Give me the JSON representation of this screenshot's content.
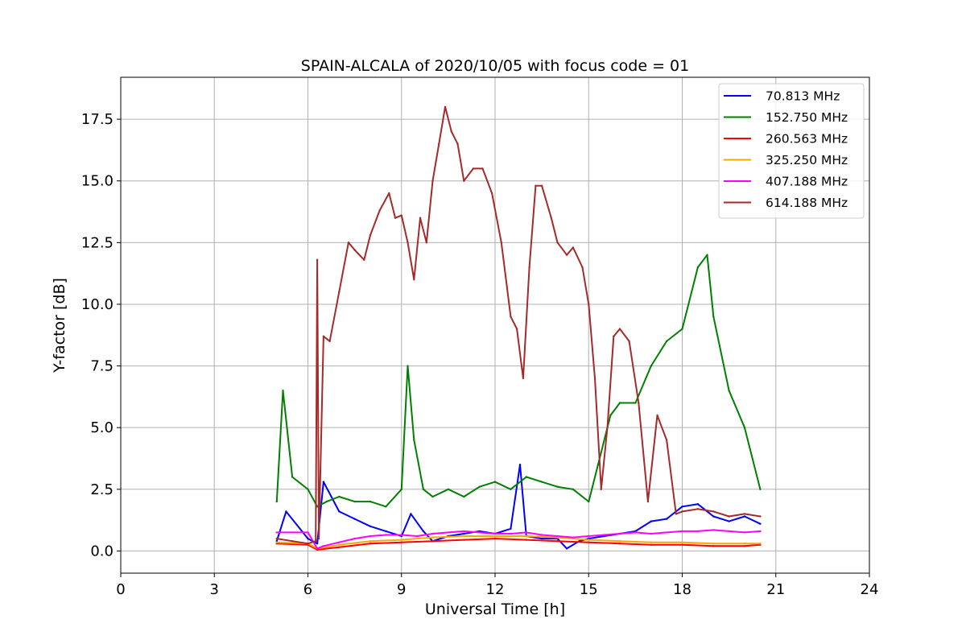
{
  "chart_data": {
    "type": "line",
    "title": "SPAIN-ALCALA of 2020/10/05 with focus code = 01",
    "xlabel": "Universal Time [h]",
    "ylabel": "Y-factor [dB]",
    "xlim": [
      0,
      24
    ],
    "ylim": [
      -0.9,
      19.2
    ],
    "xticks": [
      0,
      3,
      6,
      9,
      12,
      15,
      18,
      21,
      24
    ],
    "xtick_labels": [
      "0",
      "3",
      "6",
      "9",
      "12",
      "15",
      "18",
      "21",
      "24"
    ],
    "yticks": [
      0,
      2.5,
      5,
      7.5,
      10,
      12.5,
      15,
      17.5
    ],
    "ytick_labels": [
      "0.0",
      "2.5",
      "5.0",
      "7.5",
      "10.0",
      "12.5",
      "15.0",
      "17.5"
    ],
    "grid": true,
    "legend_position": "top-right",
    "series": [
      {
        "name": " 70.813 MHz",
        "color": "#0000ff",
        "x": [
          5.0,
          5.3,
          6.0,
          6.3,
          6.5,
          7.0,
          7.5,
          8.0,
          8.5,
          9.0,
          9.3,
          9.7,
          10.0,
          10.5,
          11.0,
          11.5,
          12.0,
          12.5,
          12.8,
          13.0,
          13.5,
          14.0,
          14.3,
          14.7,
          15.0,
          15.5,
          16.0,
          16.5,
          17.0,
          17.5,
          18.0,
          18.5,
          19.0,
          19.5,
          20.0,
          20.5
        ],
        "y": [
          0.4,
          1.6,
          0.5,
          0.3,
          2.8,
          1.6,
          1.3,
          1.0,
          0.8,
          0.6,
          1.5,
          0.8,
          0.4,
          0.6,
          0.7,
          0.8,
          0.7,
          0.9,
          3.5,
          0.6,
          0.5,
          0.5,
          0.1,
          0.4,
          0.5,
          0.6,
          0.7,
          0.8,
          1.2,
          1.3,
          1.8,
          1.9,
          1.4,
          1.2,
          1.4,
          1.1
        ]
      },
      {
        "name": "152.750 MHz",
        "color": "#008000",
        "x": [
          5.0,
          5.2,
          5.5,
          6.0,
          6.3,
          6.6,
          7.0,
          7.5,
          8.0,
          8.5,
          9.0,
          9.2,
          9.4,
          9.7,
          10.0,
          10.5,
          11.0,
          11.5,
          12.0,
          12.5,
          13.0,
          13.5,
          14.0,
          14.5,
          15.0,
          15.3,
          15.7,
          16.0,
          16.5,
          17.0,
          17.5,
          18.0,
          18.5,
          18.8,
          19.0,
          19.5,
          20.0,
          20.5
        ],
        "y": [
          2.0,
          6.5,
          3.0,
          2.5,
          1.8,
          2.0,
          2.2,
          2.0,
          2.0,
          1.8,
          2.5,
          7.5,
          4.5,
          2.5,
          2.2,
          2.5,
          2.2,
          2.6,
          2.8,
          2.5,
          3.0,
          2.8,
          2.6,
          2.5,
          2.0,
          3.5,
          5.5,
          6.0,
          6.0,
          7.5,
          8.5,
          9.0,
          11.5,
          12.0,
          9.5,
          6.5,
          5.0,
          2.5
        ]
      },
      {
        "name": "260.563 MHz",
        "color": "#ff0000",
        "x": [
          5.0,
          6.0,
          6.3,
          7.0,
          8.0,
          9.0,
          10.0,
          11.0,
          12.0,
          13.0,
          14.0,
          15.0,
          16.0,
          17.0,
          18.0,
          19.0,
          20.0,
          20.5
        ],
        "y": [
          0.3,
          0.25,
          0.05,
          0.15,
          0.3,
          0.35,
          0.4,
          0.45,
          0.5,
          0.45,
          0.4,
          0.35,
          0.3,
          0.25,
          0.25,
          0.2,
          0.2,
          0.25
        ]
      },
      {
        "name": "325.250 MHz",
        "color": "#ffa500",
        "x": [
          5.0,
          6.0,
          6.3,
          7.0,
          8.0,
          9.0,
          10.0,
          11.0,
          12.0,
          13.0,
          14.0,
          15.0,
          16.0,
          17.0,
          18.0,
          19.0,
          20.0,
          20.5
        ],
        "y": [
          0.35,
          0.3,
          0.1,
          0.25,
          0.4,
          0.45,
          0.55,
          0.6,
          0.6,
          0.6,
          0.55,
          0.45,
          0.4,
          0.35,
          0.35,
          0.3,
          0.3,
          0.3
        ]
      },
      {
        "name": "407.188 MHz",
        "color": "#ff00ff",
        "x": [
          5.0,
          5.5,
          6.0,
          6.3,
          6.5,
          7.0,
          7.5,
          8.0,
          8.5,
          9.0,
          9.5,
          10.0,
          10.5,
          11.0,
          11.5,
          12.0,
          12.5,
          13.0,
          13.5,
          14.0,
          14.5,
          15.0,
          15.5,
          16.0,
          16.5,
          17.0,
          17.5,
          18.0,
          18.5,
          19.0,
          19.5,
          20.0,
          20.5
        ],
        "y": [
          0.75,
          0.75,
          0.75,
          0.1,
          0.2,
          0.35,
          0.5,
          0.6,
          0.65,
          0.65,
          0.6,
          0.7,
          0.75,
          0.8,
          0.75,
          0.7,
          0.7,
          0.75,
          0.65,
          0.6,
          0.55,
          0.6,
          0.65,
          0.7,
          0.75,
          0.7,
          0.75,
          0.8,
          0.8,
          0.85,
          0.8,
          0.75,
          0.8
        ]
      },
      {
        "name": "614.188 MHz",
        "color": "#a52a2a",
        "x": [
          5.0,
          5.5,
          6.0,
          6.25,
          6.3,
          6.35,
          6.5,
          6.7,
          7.0,
          7.3,
          7.5,
          7.8,
          8.0,
          8.3,
          8.6,
          8.8,
          9.0,
          9.2,
          9.4,
          9.6,
          9.8,
          10.0,
          10.2,
          10.4,
          10.6,
          10.8,
          11.0,
          11.3,
          11.6,
          11.9,
          12.2,
          12.5,
          12.7,
          12.9,
          13.1,
          13.3,
          13.5,
          13.8,
          14.0,
          14.3,
          14.5,
          14.8,
          15.0,
          15.2,
          15.4,
          15.6,
          15.8,
          16.0,
          16.3,
          16.6,
          16.9,
          17.2,
          17.5,
          17.8,
          18.0,
          18.5,
          19.0,
          19.5,
          20.0,
          20.5
        ],
        "y": [
          0.5,
          0.4,
          0.3,
          0.4,
          11.8,
          0.5,
          8.7,
          8.5,
          10.5,
          12.5,
          12.2,
          11.8,
          12.8,
          13.8,
          14.5,
          13.5,
          13.6,
          12.5,
          11.0,
          13.5,
          12.5,
          15.0,
          16.5,
          18.0,
          17.0,
          16.5,
          15.0,
          15.5,
          15.5,
          14.5,
          12.5,
          9.5,
          9.0,
          7.0,
          11.5,
          14.8,
          14.8,
          13.5,
          12.5,
          12.0,
          12.3,
          11.5,
          10.0,
          7.0,
          2.5,
          5.0,
          8.7,
          9.0,
          8.5,
          6.0,
          2.0,
          5.5,
          4.5,
          1.5,
          1.6,
          1.7,
          1.6,
          1.4,
          1.5,
          1.4
        ]
      }
    ]
  }
}
